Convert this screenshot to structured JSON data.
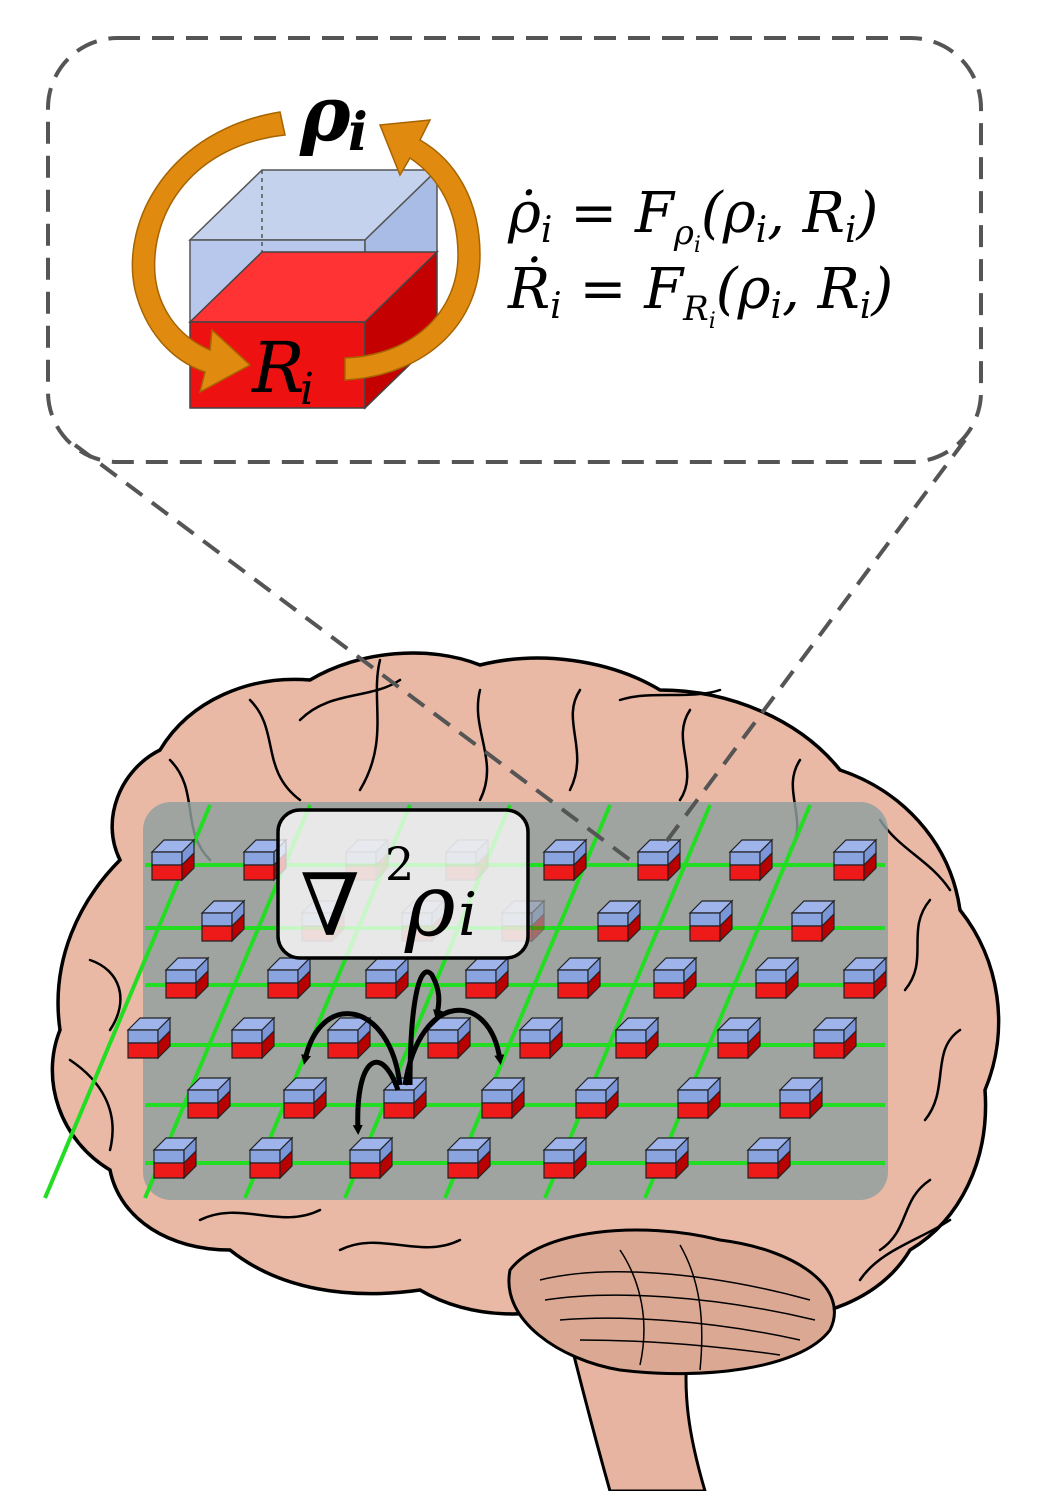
{
  "callout": {
    "density_label": "ρ",
    "density_sub": "i",
    "resource_label": "R",
    "resource_sub": "i",
    "eq1": {
      "lhs": "ρ̇",
      "lhs_sub": "i",
      "eq": " = ",
      "func": "F",
      "func_sub": "ρ",
      "func_subsub": "i",
      "args": "(ρ",
      "args_sub1": "i",
      "args_mid": ", R",
      "args_sub2": "i",
      "args_end": ")"
    },
    "eq2": {
      "lhs": "Ṙ",
      "lhs_sub": "i",
      "eq": " = ",
      "func": "F",
      "func_sub": "R",
      "func_subsub": "i",
      "args": "(ρ",
      "args_sub1": "i",
      "args_mid": ", R",
      "args_sub2": "i",
      "args_end": ")"
    }
  },
  "lattice": {
    "laplacian": "∇",
    "laplacian_power": "2",
    "laplacian_var": "ρ",
    "laplacian_sub": "i"
  },
  "colors": {
    "cube_top": "#b8c8ec",
    "cube_red": "#ee2222",
    "arrow_orange": "#e08a10",
    "brain_fill": "#e8b8a4",
    "lattice_line": "#22dd22",
    "overlay": "#8fa0a0"
  }
}
